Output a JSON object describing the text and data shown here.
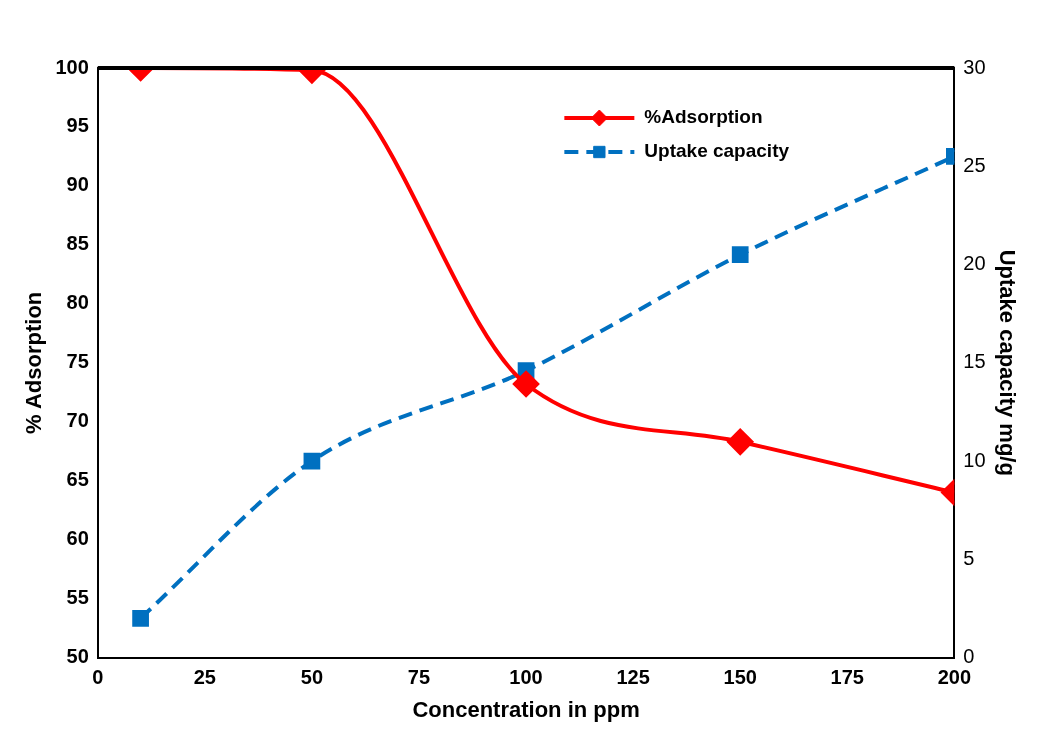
{
  "chart_data": {
    "type": "line",
    "xlabel": "Concentration in ppm",
    "ylabel": "% Adsorption",
    "y2label": "Uptake capacity mg/g",
    "x": [
      10,
      50,
      100,
      150,
      200
    ],
    "series": [
      {
        "name": "%Adsorption",
        "color": "#ff0000",
        "values": [
          100,
          99.8,
          73.2,
          68.3,
          64.0
        ],
        "marker": "diamond",
        "line_style": "solid"
      },
      {
        "name": "Uptake capacity",
        "color": "#0070c0",
        "values": [
          2.0,
          10.0,
          14.6,
          20.5,
          25.5
        ],
        "axis": "y2",
        "marker": "square",
        "line_style": "dashed"
      }
    ],
    "xlim": [
      0,
      200
    ],
    "xticks": [
      0,
      25,
      50,
      75,
      100,
      125,
      150,
      175,
      200
    ],
    "ylim": [
      50,
      100
    ],
    "yticks": [
      50,
      55,
      60,
      65,
      70,
      75,
      80,
      85,
      90,
      95,
      100
    ],
    "y2lim": [
      0,
      30
    ],
    "y2ticks": [
      0,
      5,
      10,
      15,
      20,
      25,
      30
    ],
    "grid": false,
    "legend": "top right"
  }
}
